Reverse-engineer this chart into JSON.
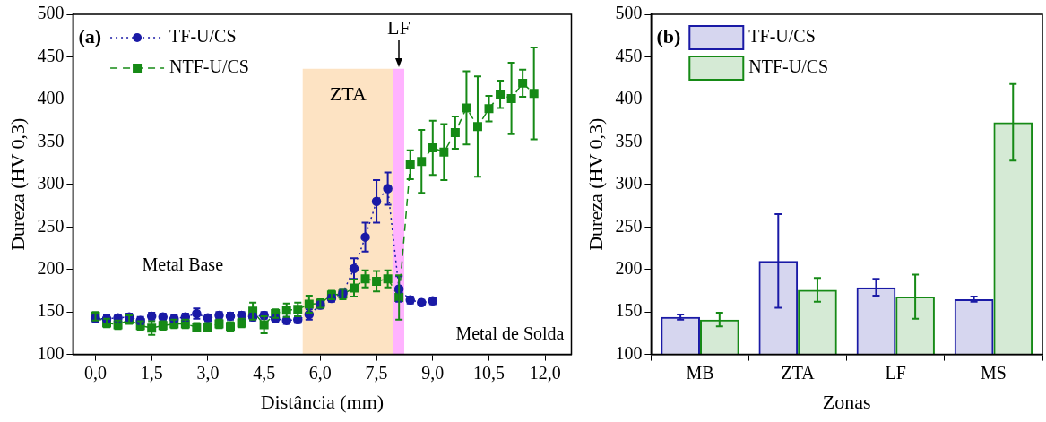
{
  "chart_data": [
    {
      "type": "line",
      "xlabel": "Distância (mm)",
      "ylabel": "Dureza (HV 0,3)",
      "annotations": [
        "(a)",
        "Metal Base",
        "Metal de Solda"
      ],
      "xlim": [
        -0.6,
        12.7
      ],
      "xticks": [
        {
          "value": 0,
          "label": "0,0"
        },
        {
          "value": 1.5,
          "label": "1,5"
        },
        {
          "value": 3,
          "label": "3,0"
        },
        {
          "value": 4.5,
          "label": "4,5"
        },
        {
          "value": 6,
          "label": "6,0"
        },
        {
          "value": 7.5,
          "label": "7,5"
        },
        {
          "value": 9,
          "label": "9,0"
        },
        {
          "value": 10.5,
          "label": "10,5"
        },
        {
          "value": 12,
          "label": "12,0"
        }
      ],
      "ylim": [
        100,
        500
      ],
      "yticks": [
        100,
        150,
        200,
        250,
        300,
        350,
        400,
        450,
        500
      ],
      "legend": "top left",
      "bands": [
        {
          "axis": "x",
          "from": 5.53,
          "to": 7.95,
          "label": "ZTA",
          "color": "#fde3c3"
        },
        {
          "axis": "x",
          "from": 7.95,
          "to": 8.24,
          "label": "LF",
          "color": "#ffb3ff"
        }
      ],
      "series": [
        {
          "name": "TF-U/CS",
          "color": "#1a1aa6",
          "marker": "circle",
          "line_style": "dotted",
          "x": [
            0,
            0.3,
            0.6,
            0.9,
            1.2,
            1.5,
            1.8,
            2.1,
            2.4,
            2.7,
            3.0,
            3.3,
            3.6,
            3.9,
            4.2,
            4.5,
            4.8,
            5.1,
            5.4,
            5.7,
            6.0,
            6.3,
            6.6,
            6.9,
            7.2,
            7.5,
            7.8,
            8.1,
            8.4,
            8.7,
            9.0
          ],
          "values": [
            142,
            142,
            143,
            144,
            140,
            145,
            144,
            142,
            144,
            148,
            143,
            146,
            145,
            146,
            144,
            146,
            142,
            140,
            141,
            147,
            158,
            166,
            172,
            201,
            238,
            280,
            295,
            177,
            164,
            161,
            163
          ],
          "errors": [
            4,
            4,
            4,
            4,
            4,
            4,
            4,
            4,
            4,
            6,
            4,
            4,
            4,
            4,
            4,
            4,
            4,
            4,
            4,
            6,
            4,
            4,
            5,
            12,
            17,
            25,
            19,
            15,
            4,
            3,
            4
          ]
        },
        {
          "name": "NTF-U/CS",
          "color": "#168a16",
          "marker": "square",
          "line_style": "dashed",
          "x": [
            0,
            0.3,
            0.6,
            0.9,
            1.2,
            1.5,
            1.8,
            2.1,
            2.4,
            2.7,
            3.0,
            3.3,
            3.6,
            3.9,
            4.2,
            4.5,
            4.8,
            5.1,
            5.4,
            5.7,
            6.0,
            6.3,
            6.6,
            6.9,
            7.2,
            7.5,
            7.8,
            8.1,
            8.4,
            8.7,
            9.0,
            9.3,
            9.6,
            9.9,
            10.2,
            10.5,
            10.8,
            11.1,
            11.4,
            11.7
          ],
          "values": [
            145,
            137,
            135,
            141,
            134,
            131,
            134,
            136,
            136,
            132,
            132,
            136,
            133,
            137,
            151,
            135,
            148,
            152,
            153,
            159,
            160,
            170,
            171,
            178,
            189,
            186,
            189,
            167,
            323,
            327,
            343,
            338,
            361,
            390,
            368,
            389,
            406,
            401,
            419,
            407
          ],
          "errors": [
            5,
            5,
            5,
            5,
            5,
            8,
            5,
            5,
            5,
            5,
            5,
            5,
            5,
            5,
            10,
            10,
            5,
            8,
            8,
            10,
            5,
            5,
            6,
            10,
            10,
            12,
            10,
            26,
            17,
            37,
            32,
            33,
            19,
            43,
            59,
            15,
            16,
            42,
            16,
            54
          ]
        }
      ]
    },
    {
      "type": "bar",
      "xlabel": "Zonas",
      "ylabel": "Dureza (HV 0,3)",
      "annotations": [
        "(b)"
      ],
      "categories": [
        "MB",
        "ZTA",
        "LF",
        "MS"
      ],
      "ylim": [
        100,
        500
      ],
      "yticks": [
        100,
        150,
        200,
        250,
        300,
        350,
        400,
        450,
        500
      ],
      "legend": "top left",
      "series": [
        {
          "name": "TF-U/CS",
          "color": "#1a1aa6",
          "values": [
            144,
            210,
            179,
            165
          ],
          "errors": [
            3,
            55,
            10,
            3
          ]
        },
        {
          "name": "NTF-U/CS",
          "color": "#168a16",
          "values": [
            141,
            176,
            168,
            373
          ],
          "errors": [
            8,
            14,
            26,
            45
          ]
        }
      ]
    }
  ]
}
